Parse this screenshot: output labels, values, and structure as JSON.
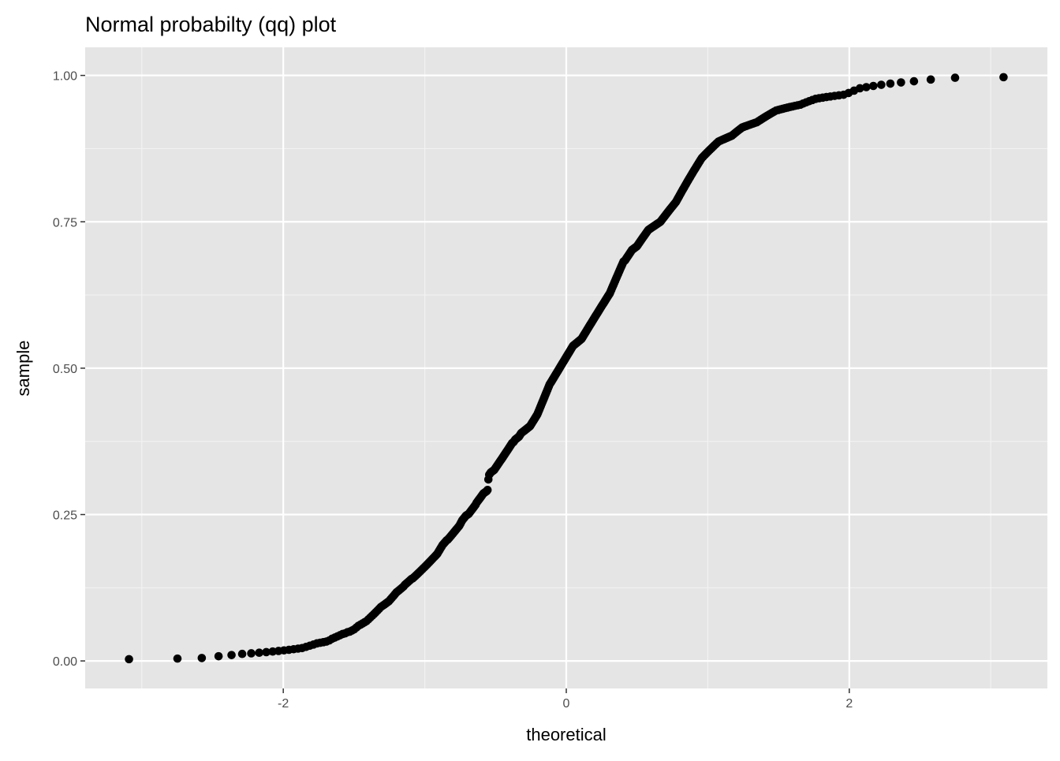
{
  "chart_data": {
    "type": "scatter",
    "title": "Normal probabilty (qq) plot",
    "xlabel": "theoretical",
    "ylabel": "sample",
    "xlim": [
      -3.4,
      3.4
    ],
    "ylim": [
      -0.047,
      1.048
    ],
    "x_ticks": [
      -2,
      0,
      2
    ],
    "x_tick_labels": [
      "-2",
      "0",
      "2"
    ],
    "y_ticks": [
      0,
      0.25,
      0.5,
      0.75,
      1
    ],
    "y_tick_labels": [
      "0.00",
      "0.25",
      "0.50",
      "0.75",
      "1.00"
    ],
    "grid": true,
    "panel_background": "#e5e5e5",
    "point_color": "#000000",
    "theoretical_distribution": "normal",
    "sample": [
      0.003,
      0.004,
      0.005,
      0.008,
      0.01,
      0.012,
      0.013,
      0.014,
      0.015,
      0.016,
      0.017,
      0.018,
      0.019,
      0.02,
      0.021,
      0.022,
      0.024,
      0.026,
      0.028,
      0.03,
      0.031,
      0.032,
      0.033,
      0.035,
      0.038,
      0.04,
      0.042,
      0.044,
      0.046,
      0.047,
      0.049,
      0.05,
      0.052,
      0.054,
      0.057,
      0.06,
      0.062,
      0.064,
      0.066,
      0.068,
      0.071,
      0.074,
      0.077,
      0.08,
      0.083,
      0.086,
      0.089,
      0.092,
      0.094,
      0.096,
      0.098,
      0.1,
      0.102,
      0.105,
      0.108,
      0.111,
      0.114,
      0.117,
      0.119,
      0.121,
      0.123,
      0.125,
      0.127,
      0.13,
      0.132,
      0.134,
      0.136,
      0.138,
      0.14,
      0.141,
      0.143,
      0.145,
      0.147,
      0.149,
      0.151,
      0.153,
      0.155,
      0.157,
      0.159,
      0.161,
      0.163,
      0.165,
      0.167,
      0.169,
      0.171,
      0.173,
      0.175,
      0.177,
      0.179,
      0.181,
      0.183,
      0.186,
      0.189,
      0.192,
      0.195,
      0.198,
      0.2,
      0.202,
      0.204,
      0.206,
      0.207,
      0.209,
      0.211,
      0.213,
      0.215,
      0.217,
      0.219,
      0.221,
      0.223,
      0.225,
      0.227,
      0.229,
      0.231,
      0.234,
      0.237,
      0.24,
      0.242,
      0.244,
      0.246,
      0.248,
      0.249,
      0.25,
      0.251,
      0.253,
      0.255,
      0.257,
      0.259,
      0.261,
      0.263,
      0.265,
      0.267,
      0.27,
      0.272,
      0.274,
      0.276,
      0.278,
      0.28,
      0.282,
      0.284,
      0.286,
      0.287,
      0.288,
      0.289,
      0.29,
      0.292,
      0.31,
      0.318,
      0.32,
      0.322,
      0.323,
      0.324,
      0.325,
      0.326,
      0.328,
      0.33,
      0.332,
      0.334,
      0.336,
      0.338,
      0.34,
      0.342,
      0.344,
      0.346,
      0.348,
      0.35,
      0.352,
      0.354,
      0.356,
      0.358,
      0.36,
      0.362,
      0.364,
      0.366,
      0.368,
      0.37,
      0.372,
      0.373,
      0.374,
      0.376,
      0.378,
      0.379,
      0.38,
      0.381,
      0.382,
      0.383,
      0.385,
      0.387,
      0.389,
      0.39,
      0.391,
      0.392,
      0.393,
      0.394,
      0.395,
      0.396,
      0.397,
      0.398,
      0.399,
      0.4,
      0.401,
      0.403,
      0.405,
      0.407,
      0.409,
      0.411,
      0.413,
      0.415,
      0.417,
      0.419,
      0.421,
      0.424,
      0.427,
      0.43,
      0.433,
      0.436,
      0.439,
      0.442,
      0.445,
      0.448,
      0.451,
      0.454,
      0.457,
      0.46,
      0.463,
      0.466,
      0.469,
      0.472,
      0.474,
      0.476,
      0.478,
      0.48,
      0.482,
      0.484,
      0.486,
      0.488,
      0.49,
      0.492,
      0.494,
      0.496,
      0.498,
      0.5,
      0.502,
      0.504,
      0.506,
      0.508,
      0.51,
      0.512,
      0.514,
      0.516,
      0.518,
      0.52,
      0.522,
      0.524,
      0.526,
      0.528,
      0.53,
      0.532,
      0.534,
      0.536,
      0.538,
      0.539,
      0.54,
      0.541,
      0.542,
      0.543,
      0.544,
      0.545,
      0.546,
      0.547,
      0.548,
      0.549,
      0.55,
      0.552,
      0.554,
      0.556,
      0.558,
      0.56,
      0.562,
      0.564,
      0.566,
      0.568,
      0.57,
      0.572,
      0.574,
      0.576,
      0.578,
      0.58,
      0.582,
      0.584,
      0.586,
      0.588,
      0.59,
      0.592,
      0.594,
      0.596,
      0.598,
      0.6,
      0.602,
      0.604,
      0.606,
      0.608,
      0.61,
      0.612,
      0.614,
      0.616,
      0.618,
      0.62,
      0.622,
      0.624,
      0.626,
      0.628,
      0.631,
      0.634,
      0.637,
      0.64,
      0.643,
      0.646,
      0.649,
      0.652,
      0.655,
      0.658,
      0.661,
      0.664,
      0.667,
      0.67,
      0.673,
      0.676,
      0.679,
      0.682,
      0.683,
      0.684,
      0.686,
      0.688,
      0.69,
      0.692,
      0.694,
      0.696,
      0.698,
      0.7,
      0.702,
      0.703,
      0.704,
      0.705,
      0.706,
      0.707,
      0.708,
      0.71,
      0.712,
      0.714,
      0.716,
      0.718,
      0.72,
      0.722,
      0.724,
      0.726,
      0.728,
      0.73,
      0.732,
      0.734,
      0.736,
      0.737,
      0.738,
      0.739,
      0.74,
      0.741,
      0.742,
      0.743,
      0.744,
      0.745,
      0.746,
      0.747,
      0.748,
      0.749,
      0.75,
      0.752,
      0.754,
      0.756,
      0.758,
      0.76,
      0.762,
      0.764,
      0.766,
      0.768,
      0.77,
      0.772,
      0.774,
      0.776,
      0.778,
      0.78,
      0.782,
      0.784,
      0.787,
      0.79,
      0.793,
      0.796,
      0.799,
      0.802,
      0.805,
      0.808,
      0.811,
      0.814,
      0.817,
      0.82,
      0.823,
      0.826,
      0.829,
      0.832,
      0.835,
      0.838,
      0.841,
      0.844,
      0.847,
      0.85,
      0.853,
      0.856,
      0.859,
      0.861,
      0.863,
      0.865,
      0.867,
      0.869,
      0.871,
      0.873,
      0.875,
      0.877,
      0.879,
      0.881,
      0.883,
      0.885,
      0.887,
      0.888,
      0.889,
      0.89,
      0.891,
      0.892,
      0.893,
      0.894,
      0.895,
      0.896,
      0.897,
      0.899,
      0.901,
      0.903,
      0.905,
      0.907,
      0.909,
      0.911,
      0.912,
      0.913,
      0.914,
      0.915,
      0.916,
      0.917,
      0.918,
      0.919,
      0.92,
      0.922,
      0.924,
      0.926,
      0.928,
      0.93,
      0.932,
      0.934,
      0.936,
      0.938,
      0.94,
      0.941,
      0.942,
      0.943,
      0.944,
      0.945,
      0.946,
      0.947,
      0.948,
      0.949,
      0.95,
      0.952,
      0.954,
      0.956,
      0.958,
      0.96,
      0.961,
      0.962,
      0.963,
      0.964,
      0.965,
      0.966,
      0.967,
      0.97,
      0.974,
      0.978,
      0.98,
      0.982,
      0.984,
      0.986,
      0.988,
      0.99,
      0.993,
      0.996,
      0.997
    ]
  }
}
